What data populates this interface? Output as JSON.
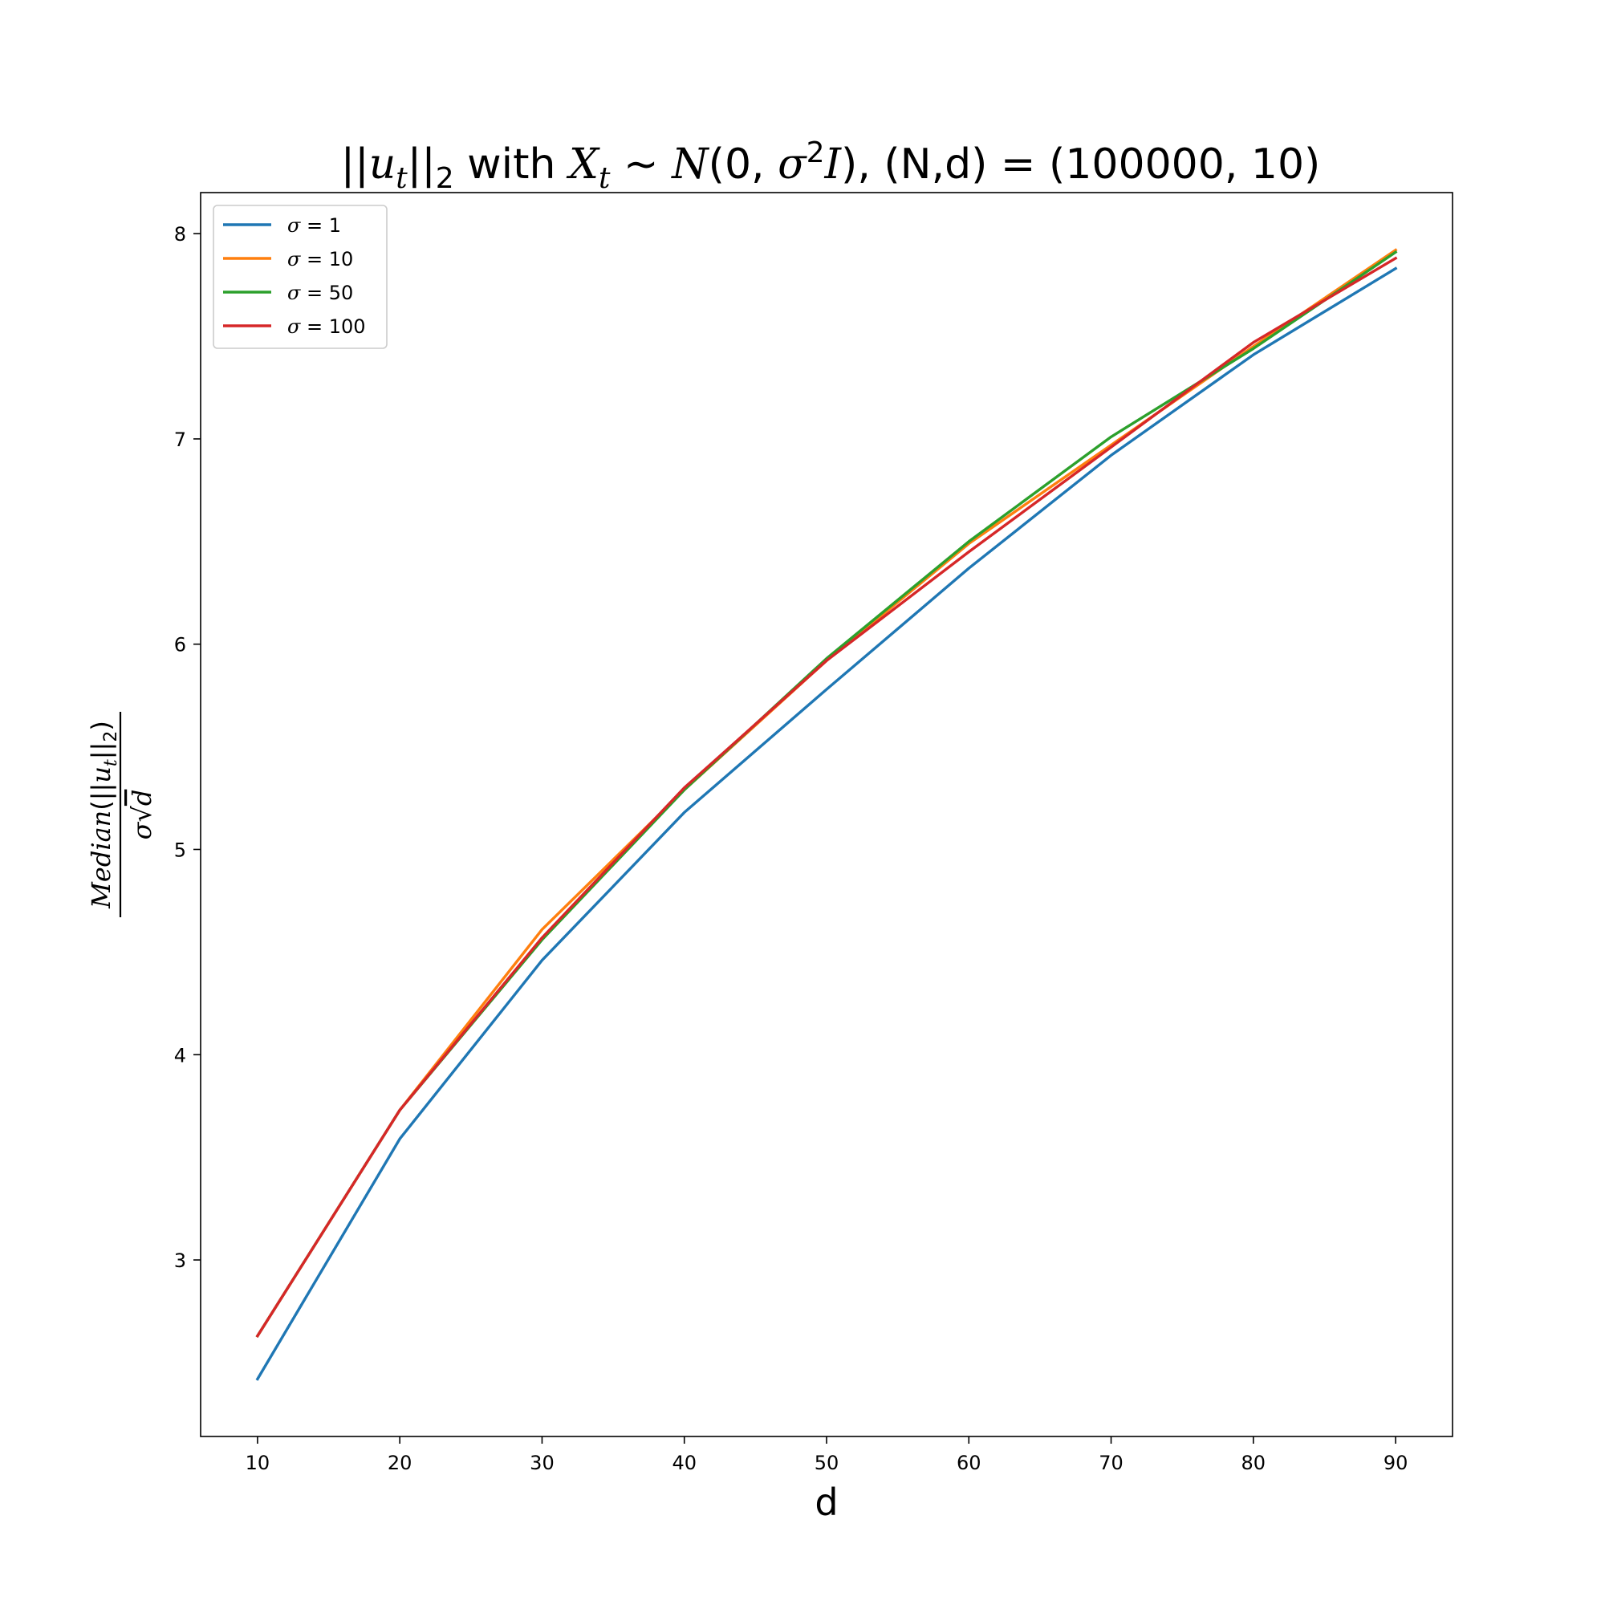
{
  "chart_data": {
    "type": "line",
    "title": {
      "norm_open": "||",
      "norm_var": "u",
      "norm_sub": "t",
      "norm_close": "||",
      "norm_idx": "2",
      "with": " with ",
      "x_var": "X",
      "x_sub": "t",
      "sim": " ~ ",
      "dist": "N",
      "args_open": "(0, ",
      "sigma": "σ",
      "sup": "2",
      "ident": "I",
      "args_close": "), (N,d) = (100000, 10)"
    },
    "xlabel": "d",
    "ylabel": {
      "numerator": {
        "median": "Median",
        "open": "(||",
        "var": "u",
        "sub": "t",
        "close": "||",
        "idx": "2",
        "end": ")"
      },
      "denominator": {
        "sigma": "σ",
        "sqrt": "√",
        "d": "d"
      }
    },
    "xlim": [
      6,
      94
    ],
    "ylim": [
      2.14,
      8.2
    ],
    "xticks": [
      10,
      20,
      30,
      40,
      50,
      60,
      70,
      80,
      90
    ],
    "yticks": [
      3,
      4,
      5,
      6,
      7,
      8
    ],
    "x": [
      10,
      20,
      30,
      40,
      50,
      60,
      70,
      80,
      90
    ],
    "grid": false,
    "legend_position": "upper-left",
    "series": [
      {
        "name": "σ =  1",
        "color": "#1f77b4",
        "values": [
          2.42,
          3.59,
          4.46,
          5.18,
          5.78,
          6.37,
          6.92,
          7.41,
          7.83
        ]
      },
      {
        "name": "σ =  10",
        "color": "#ff7f0e",
        "values": [
          2.63,
          3.73,
          4.61,
          5.29,
          5.92,
          6.49,
          6.97,
          7.45,
          7.92
        ]
      },
      {
        "name": "σ =  50",
        "color": "#2ca02c",
        "values": [
          2.63,
          3.73,
          4.56,
          5.29,
          5.93,
          6.5,
          7.01,
          7.44,
          7.91
        ]
      },
      {
        "name": "σ =  100",
        "color": "#d62728",
        "values": [
          2.63,
          3.73,
          4.57,
          5.3,
          5.92,
          6.45,
          6.96,
          7.47,
          7.88
        ]
      }
    ]
  }
}
